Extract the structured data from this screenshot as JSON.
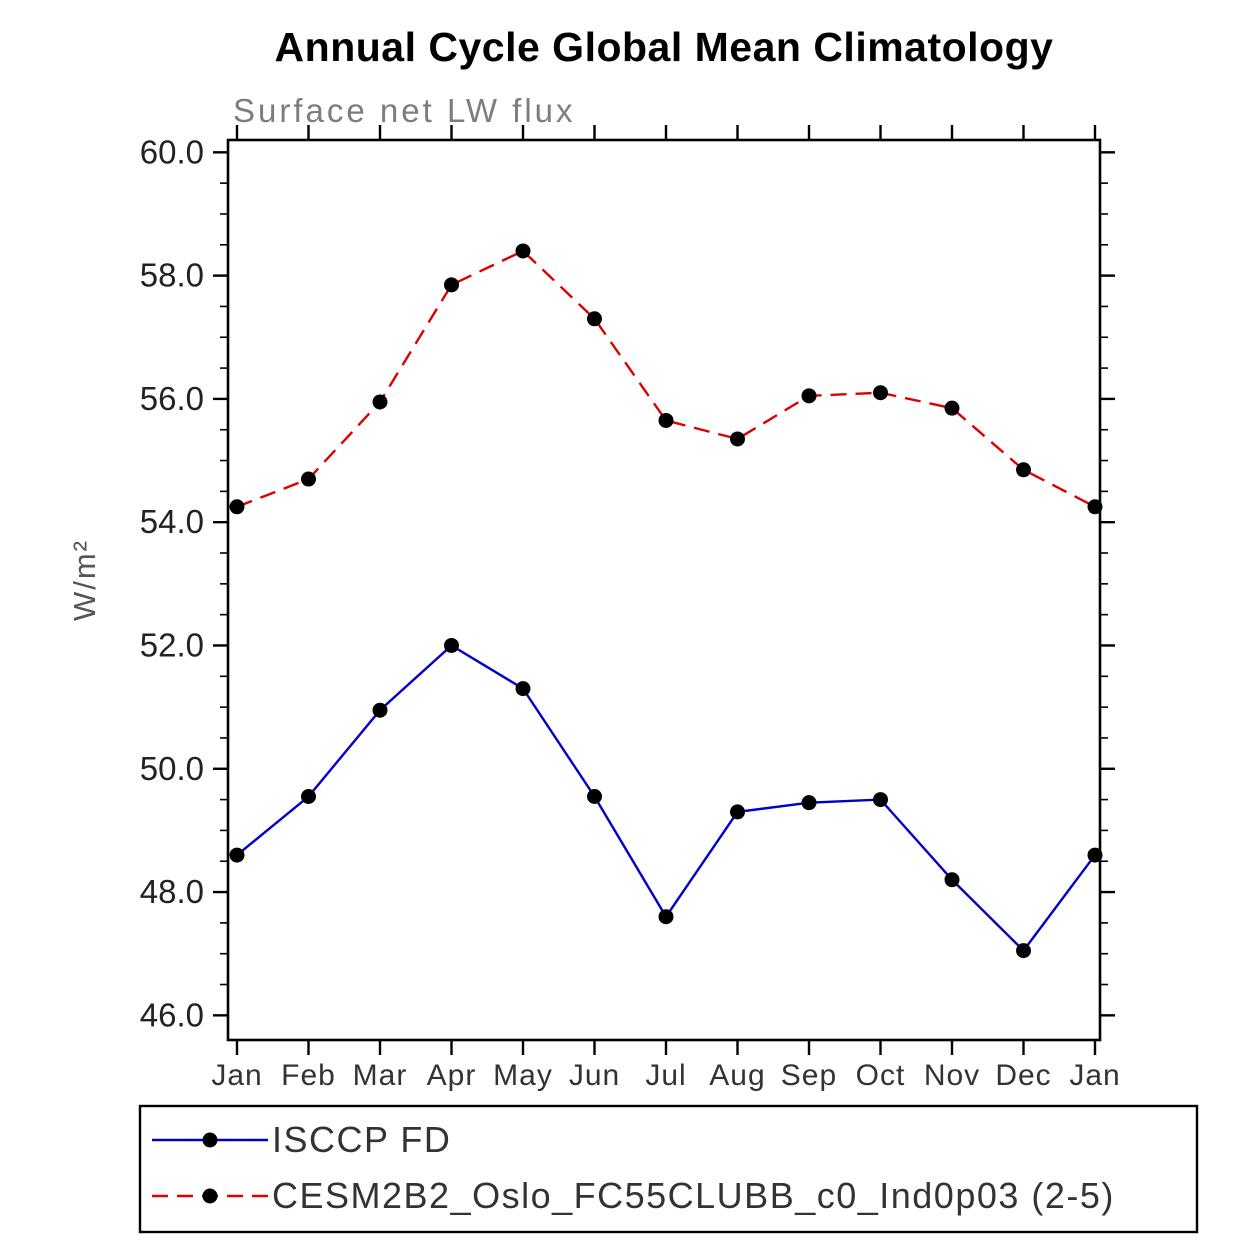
{
  "title": "Annual Cycle Global Mean Climatology",
  "chart_data": {
    "type": "line",
    "title": "Annual Cycle Global Mean Climatology",
    "subtitle": "Surface net LW flux",
    "ylabel": "W/m²",
    "xlabel": "",
    "categories": [
      "Jan",
      "Feb",
      "Mar",
      "Apr",
      "May",
      "Jun",
      "Jul",
      "Aug",
      "Sep",
      "Oct",
      "Nov",
      "Dec",
      "Jan"
    ],
    "ylim": [
      45.6,
      60.2
    ],
    "yticks": [
      46.0,
      48.0,
      50.0,
      52.0,
      54.0,
      56.0,
      58.0,
      60.0
    ],
    "ytick_labels": [
      "46.0",
      "48.0",
      "50.0",
      "52.0",
      "54.0",
      "56.0",
      "58.0",
      "60.0"
    ],
    "minor_tick_step": 0.5,
    "grid": false,
    "legend_position": "bottom",
    "frame_color": "#000000",
    "marker_color": "#000000",
    "series": [
      {
        "name": "ISCCP FD",
        "style": "solid",
        "color": "#0000cc",
        "values": [
          48.6,
          49.55,
          50.95,
          52.0,
          51.3,
          49.55,
          47.6,
          49.3,
          49.45,
          49.5,
          48.2,
          47.05,
          48.6
        ]
      },
      {
        "name": "CESM2B2_Oslo_FC55CLUBB_c0_Ind0p03 (2-5)",
        "style": "dashed",
        "color": "#dd0000",
        "values": [
          54.25,
          54.7,
          55.95,
          57.85,
          58.4,
          57.3,
          55.65,
          55.35,
          56.05,
          56.1,
          55.85,
          54.85,
          54.25
        ]
      }
    ]
  }
}
